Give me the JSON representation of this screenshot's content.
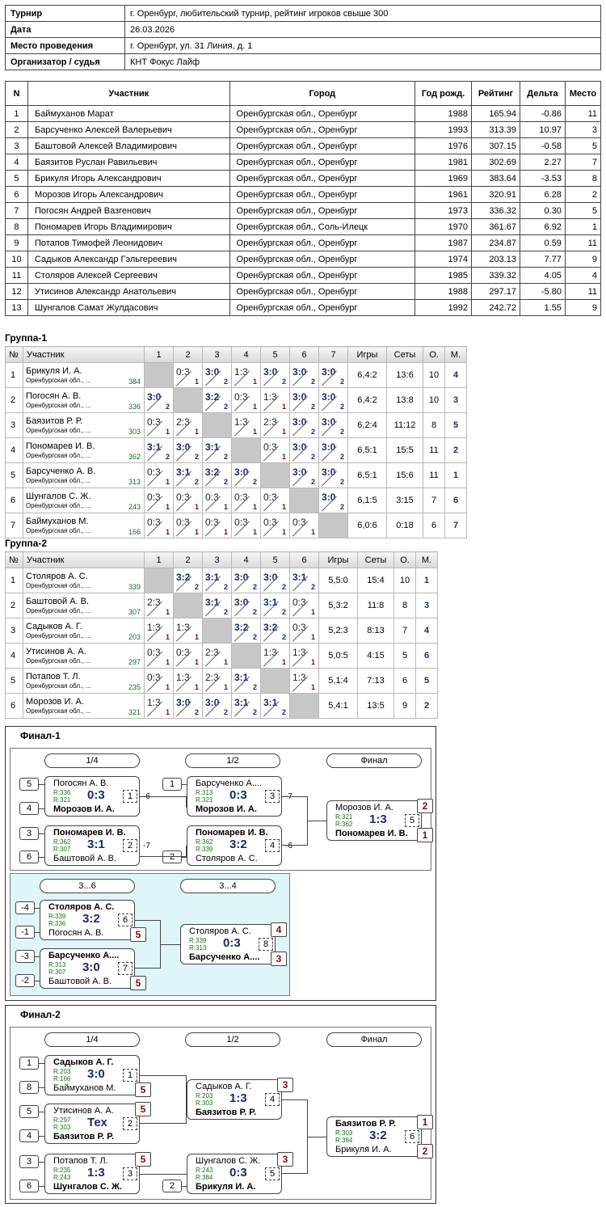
{
  "info": [
    [
      "Турнир",
      "г. Оренбург, любительский турнир, рейтинг игроков свыше 300"
    ],
    [
      "Дата",
      "26.03.2026"
    ],
    [
      "Место проведения",
      "г. Оренбург, ул. 31 Линия, д. 1"
    ],
    [
      "Организатор / судья",
      "КНТ Фокус Лайф"
    ]
  ],
  "players_header": [
    "N",
    "Участник",
    "Город",
    "Год рожд.",
    "Рейтинг",
    "Дельта",
    "Место"
  ],
  "players": [
    [
      "1",
      "Баймуханов Марат",
      "Оренбургская обл., Оренбург",
      "1988",
      "165.94",
      "-0.86",
      "11"
    ],
    [
      "2",
      "Барсученко Алексей Валерьевич",
      "Оренбургская обл., Оренбург",
      "1993",
      "313.39",
      "10.97",
      "3"
    ],
    [
      "3",
      "Баштовой Алексей Владимирович",
      "Оренбургская обл., Оренбург",
      "1976",
      "307.15",
      "-0.58",
      "5"
    ],
    [
      "4",
      "Баязитов Руслан Равильевич",
      "Оренбургская обл., Оренбург",
      "1981",
      "302.69",
      "2.27",
      "7"
    ],
    [
      "5",
      "Брикуля Игорь Александрович",
      "Оренбургская обл., Оренбург",
      "1969",
      "383.64",
      "-3.53",
      "8"
    ],
    [
      "6",
      "Морозов Игорь Александрович",
      "Оренбургская обл., Оренбург",
      "1961",
      "320.91",
      "6.28",
      "2"
    ],
    [
      "7",
      "Погосян Андрей Вазгенович",
      "Оренбургская обл., Оренбург",
      "1973",
      "336.32",
      "0.30",
      "5"
    ],
    [
      "8",
      "Пономарев Игорь Владимирович",
      "Оренбургская обл., Соль-Илецк",
      "1970",
      "361.67",
      "6.92",
      "1"
    ],
    [
      "9",
      "Потапов Тимофей Леонидович",
      "Оренбургская обл., Оренбург",
      "1987",
      "234.87",
      "0.59",
      "11"
    ],
    [
      "10",
      "Садыков Александр Гэльгереевич",
      "Оренбургская обл., Оренбург",
      "1974",
      "203.13",
      "7.77",
      "9"
    ],
    [
      "11",
      "Столяров Алексей Сергеевич",
      "Оренбургская обл., Оренбург",
      "1985",
      "339.32",
      "4.05",
      "4"
    ],
    [
      "12",
      "Утисинов Александр Анатольевич",
      "Оренбургская обл., Оренбург",
      "1988",
      "297.17",
      "-5.80",
      "11"
    ],
    [
      "13",
      "Шунгалов Самат Жулдасович",
      "Оренбургская обл., Оренбург",
      "1992",
      "242.72",
      "1.55",
      "9"
    ]
  ],
  "groups": [
    {
      "title": "Группа-1",
      "header": [
        "№",
        "Участник",
        "1",
        "2",
        "3",
        "4",
        "5",
        "6",
        "7",
        "Игры",
        "Сеты",
        "О.",
        "М."
      ],
      "rows": [
        {
          "n": "1",
          "name": "Брикуля И. А.",
          "city": "Оренбургская обл., ...",
          "rating": "384",
          "cells": [
            "X",
            "0:3|1",
            "3:0|2",
            "1:3|1",
            "3:0|2",
            "3:0|2",
            "3:0|2"
          ],
          "games": "6,4:2",
          "sets": "13:6",
          "pts": "10",
          "place": "4"
        },
        {
          "n": "2",
          "name": "Погосян А. В.",
          "city": "Оренбургская обл., ...",
          "rating": "336",
          "cells": [
            "3:0|2",
            "X",
            "3:2|2",
            "0:3|1",
            "1:3|1",
            "3:0|2",
            "3:0|2"
          ],
          "games": "6,4:2",
          "sets": "13:8",
          "pts": "10",
          "place": "3"
        },
        {
          "n": "3",
          "name": "Баязитов Р. Р.",
          "city": "Оренбургская обл., ...",
          "rating": "303",
          "cells": [
            "0:3|1",
            "2:3|1",
            "X",
            "1:3|1",
            "2:3|1",
            "3:0|2",
            "3:0|2"
          ],
          "games": "6,2:4",
          "sets": "11:12",
          "pts": "8",
          "place": "5"
        },
        {
          "n": "4",
          "name": "Пономарев И. В.",
          "city": "Оренбургская обл., ...",
          "rating": "362",
          "cells": [
            "3:1|2",
            "3:0|2",
            "3:1|2",
            "X",
            "0:3|1",
            "3:0|2",
            "3:0|2"
          ],
          "games": "6,5:1",
          "sets": "15:5",
          "pts": "11",
          "place": "2"
        },
        {
          "n": "5",
          "name": "Барсученко А. В.",
          "city": "Оренбургская обл., ...",
          "rating": "313",
          "cells": [
            "0:3|1",
            "3:1|2",
            "3:2|2",
            "3:0|2",
            "X",
            "3:0|2",
            "3:0|2"
          ],
          "games": "6,5:1",
          "sets": "15:6",
          "pts": "11",
          "place": "1"
        },
        {
          "n": "6",
          "name": "Шунгалов С. Ж.",
          "city": "Оренбургская обл., ...",
          "rating": "243",
          "cells": [
            "0:3|1",
            "0:3|1",
            "0:3|1",
            "0:3|1",
            "0:3|1",
            "X",
            "3:0|2"
          ],
          "games": "6,1:5",
          "sets": "3:15",
          "pts": "7",
          "place": "6"
        },
        {
          "n": "7",
          "name": "Баймуханов М.",
          "city": "Оренбургская обл., ...",
          "rating": "166",
          "cells": [
            "0:3|1",
            "0:3|1",
            "0:3|1",
            "0:3|1",
            "0:3|1",
            "0:3|1",
            "X"
          ],
          "games": "6,0:6",
          "sets": "0:18",
          "pts": "6",
          "place": "7"
        }
      ]
    },
    {
      "title": "Группа-2",
      "header": [
        "№",
        "Участник",
        "1",
        "2",
        "3",
        "4",
        "5",
        "6",
        "Игры",
        "Сеты",
        "О.",
        "М."
      ],
      "rows": [
        {
          "n": "1",
          "name": "Столяров А. С.",
          "city": "Оренбургская обл., ...",
          "rating": "339",
          "cells": [
            "X",
            "3:2|2",
            "3:1|2",
            "3:0|2",
            "3:0|2",
            "3:1|2"
          ],
          "games": "5,5:0",
          "sets": "15:4",
          "pts": "10",
          "place": "1"
        },
        {
          "n": "2",
          "name": "Баштовой А. В.",
          "city": "Оренбургская обл., ...",
          "rating": "307",
          "cells": [
            "2:3|1",
            "X",
            "3:1|2",
            "3:0|2",
            "3:1|2",
            "0:3|1"
          ],
          "games": "5,3:2",
          "sets": "11:8",
          "pts": "8",
          "place": "3"
        },
        {
          "n": "3",
          "name": "Садыков А. Г.",
          "city": "Оренбургская обл., ...",
          "rating": "203",
          "cells": [
            "1:3|1",
            "1:3|1",
            "X",
            "3:2|2",
            "3:2|2",
            "0:3|1"
          ],
          "games": "5,2:3",
          "sets": "8:13",
          "pts": "7",
          "place": "4"
        },
        {
          "n": "4",
          "name": "Утисинов А. А.",
          "city": "Оренбургская обл., ...",
          "rating": "297",
          "cells": [
            "0:3|1",
            "0:3|1",
            "2:3|1",
            "X",
            "1:3|1",
            "1:3|1"
          ],
          "games": "5,0:5",
          "sets": "4:15",
          "pts": "5",
          "place": "6"
        },
        {
          "n": "5",
          "name": "Потапов Т. Л.",
          "city": "Оренбургская обл., ...",
          "rating": "235",
          "cells": [
            "0:3|1",
            "1:3|1",
            "2:3|1",
            "3:1|2",
            "X",
            "1:3|1"
          ],
          "games": "5,1:4",
          "sets": "7:13",
          "pts": "6",
          "place": "5"
        },
        {
          "n": "6",
          "name": "Морозов И. А.",
          "city": "Оренбургская обл., ...",
          "rating": "321",
          "cells": [
            "1:3|1",
            "3:0|2",
            "3:0|2",
            "3:1|2",
            "3:1|2",
            "X"
          ],
          "games": "5,4:1",
          "sets": "13:5",
          "pts": "9",
          "place": "2"
        }
      ]
    }
  ],
  "final1": {
    "title": "Финал-1",
    "rounds": [
      "1/4",
      "1/2",
      "Финал"
    ],
    "rounds2": [
      "3...6",
      "3...4"
    ],
    "seeds": [
      "5",
      "4",
      "3",
      "6",
      "1",
      "2",
      "-4",
      "-1",
      "-3",
      "-2"
    ],
    "m1": {
      "p1": "Погосян А. В.",
      "r1": "R:336",
      "p2": "Морозов И. А.",
      "r2": "R:321",
      "score": "0:3",
      "no": "1",
      "note": "-6"
    },
    "m2": {
      "p1": "Пономарев И. В.",
      "r1": "R:362",
      "p2": "Баштовой А. В.",
      "r2": "R:307",
      "score": "3:1",
      "no": "2",
      "note": "-7"
    },
    "m3": {
      "p1": "Барсученко А....",
      "r1": "R:313",
      "p2": "Морозов И. А.",
      "r2": "R:321",
      "score": "0:3",
      "no": "3",
      "note": "-7"
    },
    "m4": {
      "p1": "Пономарев И. В.",
      "r1": "R:362",
      "p2": "Столяров А. С.",
      "r2": "R:339",
      "score": "3:2",
      "no": "4",
      "note": "-6"
    },
    "m5": {
      "p1": "Морозов И. А.",
      "r1": "R:321",
      "p2": "Пономарев И. В.",
      "r2": "R:362",
      "score": "1:3",
      "no": "5",
      "rk1": "2",
      "rk2": "1"
    },
    "m6": {
      "p1": "Столяров А. С.",
      "r1": "R:339",
      "p2": "Погосян А. В.",
      "r2": "R:336",
      "score": "3:2",
      "no": "6",
      "rk2": "5"
    },
    "m7": {
      "p1": "Барсученко А....",
      "r1": "R:313",
      "p2": "Баштовой А. В.",
      "r2": "R:307",
      "score": "3:0",
      "no": "7",
      "rk2": "5"
    },
    "m8": {
      "p1": "Столяров А. С.",
      "r1": "R:339",
      "p2": "Барсученко А....",
      "r2": "R:313",
      "score": "0:3",
      "no": "8",
      "rk1": "4",
      "rk2": "3"
    }
  },
  "final2": {
    "title": "Финал-2",
    "rounds": [
      "1/4",
      "1/2",
      "Финал"
    ],
    "seeds": [
      "1",
      "8",
      "5",
      "4",
      "3",
      "6",
      "2"
    ],
    "m1": {
      "p1": "Садыков А. Г.",
      "r1": "R:203",
      "p2": "Баймуханов М.",
      "r2": "R:166",
      "score": "3:0",
      "no": "1",
      "rk2": "5"
    },
    "m2": {
      "p1": "Утисинов А. А.",
      "r1": "R:297",
      "p2": "Баязитов Р. Р.",
      "r2": "R:303",
      "score": "Тех",
      "no": "2",
      "rk1": "5"
    },
    "m3": {
      "p1": "Потапов Т. Л.",
      "r1": "R:235",
      "p2": "Шунгалов С. Ж.",
      "r2": "R:243",
      "score": "1:3",
      "no": "3",
      "rk1": "5"
    },
    "m4": {
      "p1": "Садыков А. Г.",
      "r1": "R:203",
      "p2": "Баязитов Р. Р.",
      "r2": "R:303",
      "score": "1:3",
      "no": "4",
      "rk1": "3"
    },
    "m5": {
      "p1": "Шунгалов С. Ж.",
      "r1": "R:243",
      "p2": "Брикуля И. А.",
      "r2": "R:384",
      "score": "0:3",
      "no": "5",
      "rk1": "3"
    },
    "m6": {
      "p1": "Баязитов Р. Р.",
      "r1": "R:303",
      "p2": "Брикуля И. А.",
      "r2": "R:384",
      "score": "3:2",
      "no": "6",
      "rk1": "1",
      "rk2": "2"
    }
  },
  "colors": {
    "win": "#1c2a6e",
    "loss": "#7a1010",
    "rating": "#1a6e1a",
    "diag": "#c7c7c7",
    "consolation": "#dff5f7"
  }
}
